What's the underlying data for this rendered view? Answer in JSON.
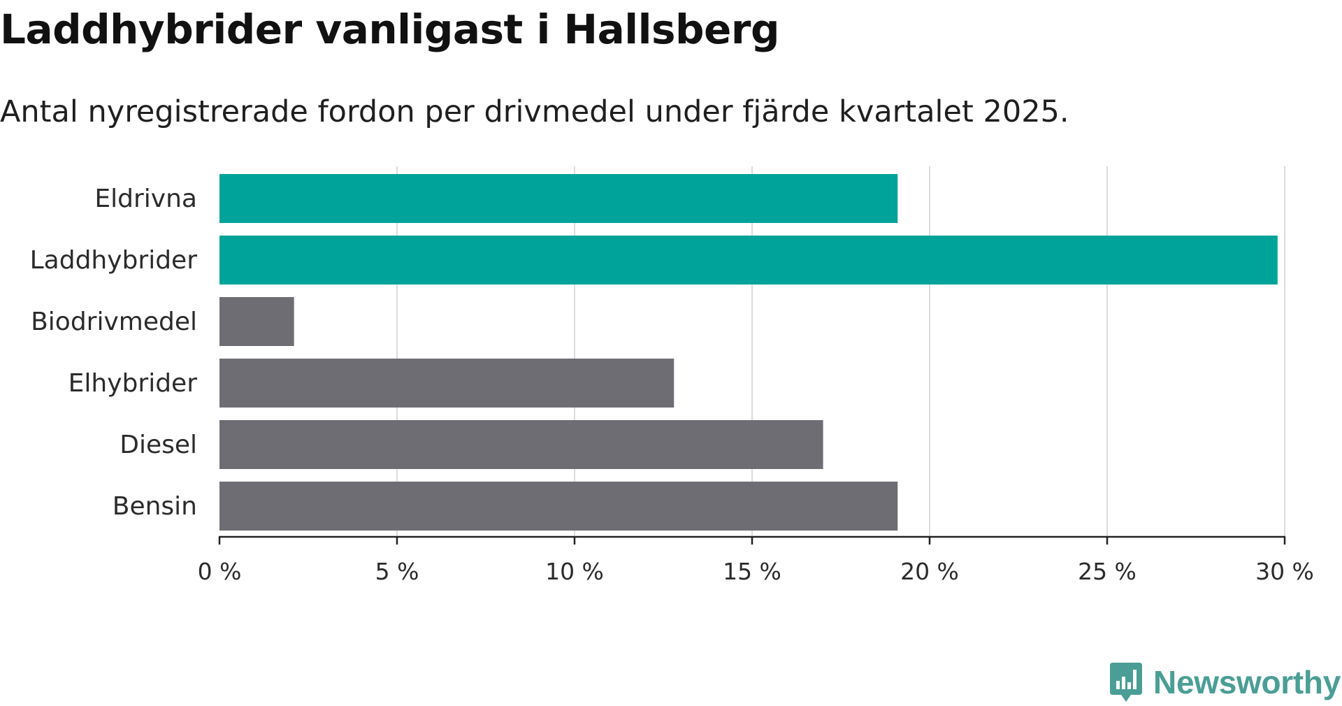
{
  "header": {
    "title": "Laddhybrider vanligast i Hallsberg",
    "subtitle": "Antal nyregistrerade fordon per drivmedel under fjärde kvartalet 2025."
  },
  "chart_data": {
    "type": "bar",
    "orientation": "horizontal",
    "title": "Laddhybrider vanligast i Hallsberg",
    "subtitle": "Antal nyregistrerade fordon per drivmedel under fjärde kvartalet 2025.",
    "categories": [
      "Eldrivna",
      "Laddhybrider",
      "Biodrivmedel",
      "Elhybrider",
      "Diesel",
      "Bensin"
    ],
    "values": [
      19.1,
      29.8,
      2.1,
      12.8,
      17.0,
      19.1
    ],
    "value_unit": "%",
    "highlighted": [
      true,
      true,
      false,
      false,
      false,
      false
    ],
    "xlim": [
      0,
      30
    ],
    "xticks": [
      0,
      5,
      10,
      15,
      20,
      25,
      30
    ],
    "xtick_labels": [
      "0 %",
      "5 %",
      "10 %",
      "15 %",
      "20 %",
      "25 %",
      "30 %"
    ],
    "xlabel": "",
    "ylabel": "",
    "grid": true,
    "colors": {
      "highlight": "#00a39a",
      "default": "#6e6d73",
      "gridline": "#dcdcdc",
      "axis": "#222222"
    }
  },
  "brand": {
    "name": "Newsworthy",
    "icon": "newsworthy-logo-icon",
    "color": "#4a9e95"
  }
}
